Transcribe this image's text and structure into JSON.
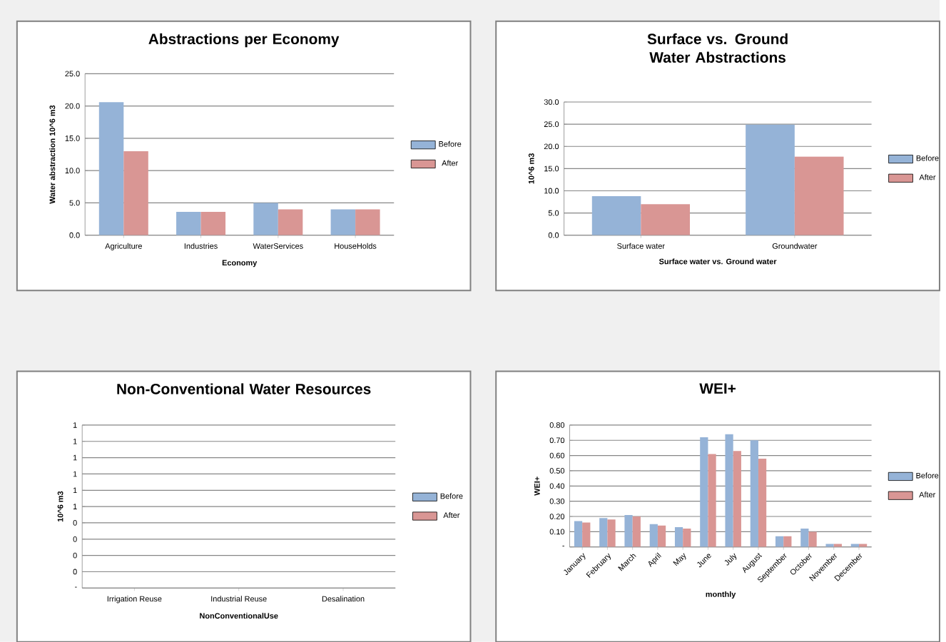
{
  "chart_data": [
    {
      "type": "bar",
      "title": "Abstractions per Economy",
      "xlabel": "Economy",
      "ylabel": "Water abstraction 10^6 m3",
      "categories": [
        "Agriculture",
        "Industries",
        "WaterServices",
        "HouseHolds"
      ],
      "series": [
        {
          "name": "Before",
          "color": "#95b3d7",
          "values": [
            20.6,
            3.6,
            5.0,
            4.0
          ]
        },
        {
          "name": "After",
          "color": "#d99694",
          "values": [
            13.0,
            3.6,
            4.0,
            4.0
          ]
        }
      ],
      "ylim": [
        0,
        25
      ],
      "yticks": [
        {
          "value": 0,
          "label": "0.0"
        },
        {
          "value": 5,
          "label": "5.0"
        },
        {
          "value": 10,
          "label": "10.0"
        },
        {
          "value": 15,
          "label": "15.0"
        },
        {
          "value": 20,
          "label": "20.0"
        },
        {
          "value": 25,
          "label": "25.0"
        }
      ],
      "grid": "y",
      "legend": "right"
    },
    {
      "type": "bar",
      "title": "Surface vs. Ground Water Abstractions",
      "xlabel": "Surface water vs. Ground water",
      "ylabel": "10^6 m3",
      "categories": [
        "Surface water",
        "Groundwater"
      ],
      "series": [
        {
          "name": "Before",
          "color": "#95b3d7",
          "values": [
            8.8,
            24.9
          ]
        },
        {
          "name": "After",
          "color": "#d99694",
          "values": [
            7.0,
            17.7
          ]
        }
      ],
      "ylim": [
        0,
        30
      ],
      "yticks": [
        {
          "value": 0,
          "label": "0.0"
        },
        {
          "value": 5,
          "label": "5.0"
        },
        {
          "value": 10,
          "label": "10.0"
        },
        {
          "value": 15,
          "label": "15.0"
        },
        {
          "value": 20,
          "label": "20.0"
        },
        {
          "value": 25,
          "label": "25.0"
        },
        {
          "value": 30,
          "label": "30.0"
        }
      ],
      "grid": "y",
      "legend": "right"
    },
    {
      "type": "bar",
      "title": "Non-Conventional Water Resources",
      "xlabel": "NonConventionalUse",
      "ylabel": "10^6 m3",
      "categories": [
        "Irrigation Reuse",
        "Industrial Reuse",
        "Desalination"
      ],
      "series": [
        {
          "name": "Before",
          "color": "#95b3d7",
          "values": [
            0,
            0,
            0
          ]
        },
        {
          "name": "After",
          "color": "#d99694",
          "values": [
            0,
            0,
            0
          ]
        }
      ],
      "ylim": [
        0,
        1
      ],
      "yticks": [
        {
          "value": 0,
          "label": "-"
        },
        {
          "value": 0.1,
          "label": "0"
        },
        {
          "value": 0.2,
          "label": "0"
        },
        {
          "value": 0.3,
          "label": "0"
        },
        {
          "value": 0.4,
          "label": "0"
        },
        {
          "value": 0.5,
          "label": "1"
        },
        {
          "value": 0.6,
          "label": "1"
        },
        {
          "value": 0.7,
          "label": "1"
        },
        {
          "value": 0.8,
          "label": "1"
        },
        {
          "value": 0.9,
          "label": "1"
        },
        {
          "value": 1.0,
          "label": "1"
        }
      ],
      "grid": "y",
      "legend": "right"
    },
    {
      "type": "bar",
      "title": "WEI+",
      "xlabel": "monthly",
      "ylabel": "WEI+",
      "categories": [
        "January",
        "February",
        "March",
        "April",
        "May",
        "June",
        "July",
        "August",
        "September",
        "October",
        "November",
        "December"
      ],
      "series": [
        {
          "name": "Before",
          "color": "#95b3d7",
          "values": [
            0.17,
            0.19,
            0.21,
            0.15,
            0.13,
            0.72,
            0.74,
            0.7,
            0.07,
            0.12,
            0.02,
            0.02
          ]
        },
        {
          "name": "After",
          "color": "#d99694",
          "values": [
            0.16,
            0.18,
            0.2,
            0.14,
            0.12,
            0.61,
            0.63,
            0.58,
            0.07,
            0.1,
            0.02,
            0.02
          ]
        }
      ],
      "ylim": [
        0,
        0.8
      ],
      "yticks": [
        {
          "value": 0,
          "label": "-"
        },
        {
          "value": 0.1,
          "label": "0.10"
        },
        {
          "value": 0.2,
          "label": "0.20"
        },
        {
          "value": 0.3,
          "label": "0.30"
        },
        {
          "value": 0.4,
          "label": "0.40"
        },
        {
          "value": 0.5,
          "label": "0.50"
        },
        {
          "value": 0.6,
          "label": "0.60"
        },
        {
          "value": 0.7,
          "label": "0.70"
        },
        {
          "value": 0.8,
          "label": "0.80"
        }
      ],
      "grid": "y",
      "legend": "right"
    }
  ]
}
